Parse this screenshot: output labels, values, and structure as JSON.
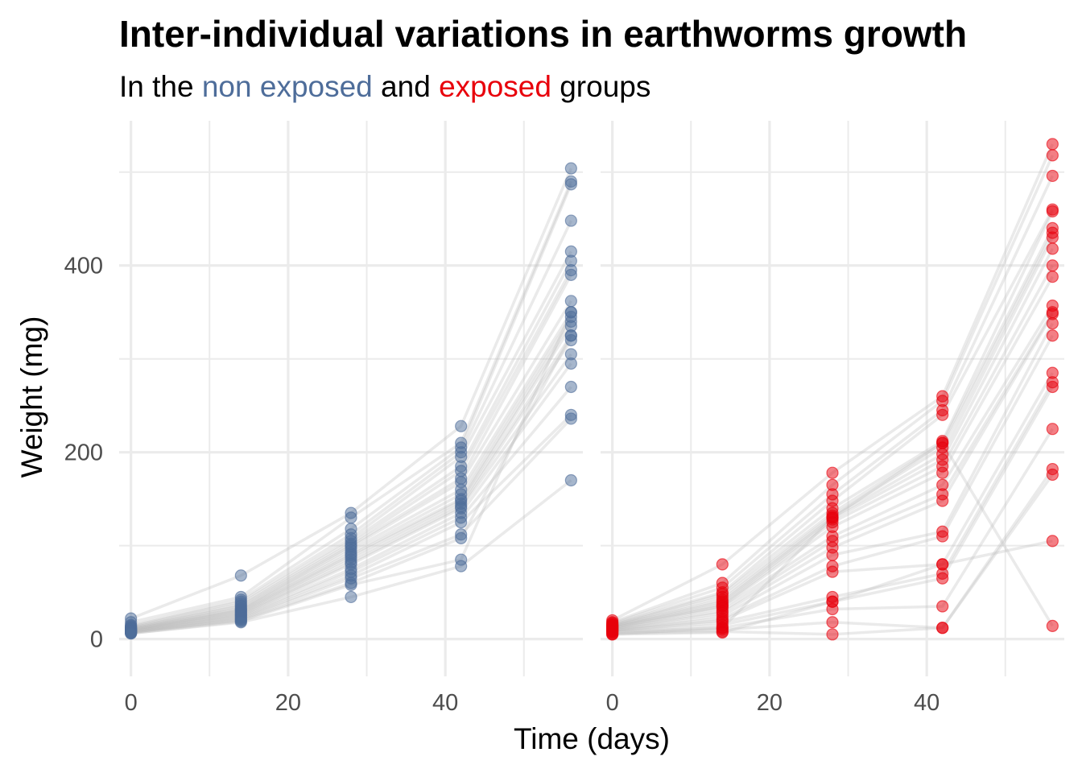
{
  "chart_data": {
    "type": "line",
    "title": "Inter-individual variations in earthworms growth",
    "subtitle": {
      "prefix": "In the ",
      "group1": "non exposed",
      "middle": " and ",
      "group2": "exposed",
      "suffix": " groups"
    },
    "xlabel": "Time (days)",
    "ylabel": "Weight (mg)",
    "xlim": [
      -1.5,
      57.5
    ],
    "ylim": [
      -40,
      555
    ],
    "x_ticks": [
      0,
      20,
      40
    ],
    "y_ticks": [
      0,
      200,
      400
    ],
    "x": [
      0,
      14,
      28,
      42,
      56
    ],
    "grid": true,
    "legend": "none",
    "colors": {
      "non_exposed": "#4e6d9a",
      "exposed": "#e8000b",
      "lines": "#bebebe",
      "grid": "#ebebeb"
    },
    "panels": [
      {
        "group": "non exposed",
        "color": "#4e6d9a",
        "series": [
          {
            "values": [
              22,
              68,
              135,
              228,
              504
            ]
          },
          {
            "values": [
              18,
              45,
              130,
              210,
              490
            ]
          },
          {
            "values": [
              15,
              42,
              118,
              205,
              487
            ]
          },
          {
            "values": [
              14,
              40,
              112,
              200,
              448
            ]
          },
          {
            "values": [
              13,
              38,
              108,
              195,
              415
            ]
          },
          {
            "values": [
              12,
              36,
              105,
              185,
              405
            ]
          },
          {
            "values": [
              12,
              35,
              102,
              180,
              395
            ]
          },
          {
            "values": [
              11,
              33,
              100,
              172,
              390
            ]
          },
          {
            "values": [
              11,
              32,
              98,
              168,
              362
            ]
          },
          {
            "values": [
              10,
              31,
              95,
              160,
              350
            ]
          },
          {
            "values": [
              10,
              30,
              92,
              155,
              345
            ]
          },
          {
            "values": [
              10,
              29,
              90,
              150,
              340
            ]
          },
          {
            "values": [
              9,
              28,
              88,
              148,
              335
            ]
          },
          {
            "values": [
              9,
              27,
              85,
              145,
              325
            ]
          },
          {
            "values": [
              9,
              26,
              82,
              142,
              320
            ]
          },
          {
            "values": [
              8,
              25,
              80,
              140,
              305
            ]
          },
          {
            "values": [
              8,
              24,
              75,
              135,
              295
            ]
          },
          {
            "values": [
              8,
              23,
              72,
              130,
              270
            ]
          },
          {
            "values": [
              7,
              22,
              68,
              125,
              240
            ]
          },
          {
            "values": [
              7,
              21,
              65,
              112,
              236
            ]
          },
          {
            "values": [
              7,
              20,
              60,
              108,
              325
            ]
          },
          {
            "values": [
              6,
              19,
              58,
              85,
              350
            ]
          },
          {
            "values": [
              6,
              18,
              45,
              78,
              170
            ]
          }
        ]
      },
      {
        "group": "exposed",
        "color": "#e8000b",
        "series": [
          {
            "values": [
              20,
              80,
              178,
              260,
              530
            ]
          },
          {
            "values": [
              18,
              60,
              165,
              255,
              518
            ]
          },
          {
            "values": [
              17,
              55,
              155,
              245,
              496
            ]
          },
          {
            "values": [
              16,
              50,
              148,
              240,
              460
            ]
          },
          {
            "values": [
              15,
              48,
              140,
              212,
              458
            ]
          },
          {
            "values": [
              15,
              45,
              135,
              210,
              440
            ]
          },
          {
            "values": [
              14,
              42,
              132,
              205,
              435
            ]
          },
          {
            "values": [
              14,
              40,
              130,
              198,
              430
            ]
          },
          {
            "values": [
              13,
              38,
              128,
              192,
              418
            ]
          },
          {
            "values": [
              13,
              36,
              125,
              185,
              400
            ]
          },
          {
            "values": [
              12,
              35,
              120,
              178,
              388
            ]
          },
          {
            "values": [
              12,
              33,
              110,
              165,
              357
            ]
          },
          {
            "values": [
              11,
              30,
              105,
              155,
              350
            ]
          },
          {
            "values": [
              11,
              28,
              98,
              148,
              348
            ]
          },
          {
            "values": [
              10,
              25,
              90,
              115,
              338
            ]
          },
          {
            "values": [
              10,
              22,
              78,
              110,
              325
            ]
          },
          {
            "values": [
              9,
              20,
              72,
              80,
              285
            ]
          },
          {
            "values": [
              9,
              18,
              45,
              70,
              275
            ]
          },
          {
            "values": [
              8,
              15,
              40,
              65,
              270
            ]
          },
          {
            "values": [
              8,
              12,
              32,
              35,
              225
            ]
          },
          {
            "values": [
              7,
              10,
              18,
              12,
              182
            ]
          },
          {
            "values": [
              6,
              8,
              5,
              12,
              176
            ]
          },
          {
            "values": [
              5,
              7,
              40,
              80,
              105
            ]
          },
          {
            "values": [
              5,
              12,
              130,
              210,
              14
            ]
          }
        ]
      }
    ]
  }
}
